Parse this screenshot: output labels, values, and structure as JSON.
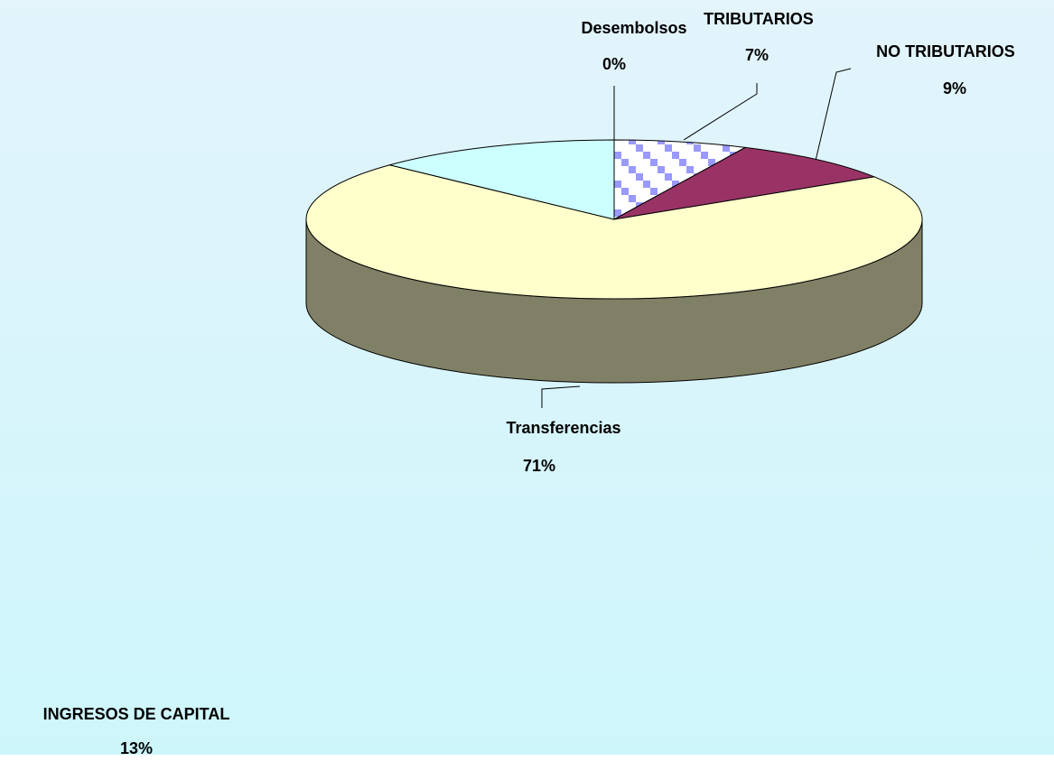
{
  "chart_data": {
    "type": "pie",
    "categories": [
      "Desembolsos",
      "TRIBUTARIOS",
      "NO TRIBUTARIOS",
      "Transferencias",
      "INGRESOS DE CAPITAL"
    ],
    "values": [
      0,
      7,
      9,
      71,
      13
    ],
    "value_labels": [
      "0%",
      "7%",
      "9%",
      "71%",
      "13%"
    ],
    "colors": [
      "#ffffff",
      "pattern",
      "#993366",
      "#ffffcc",
      "#ccffff"
    ]
  }
}
